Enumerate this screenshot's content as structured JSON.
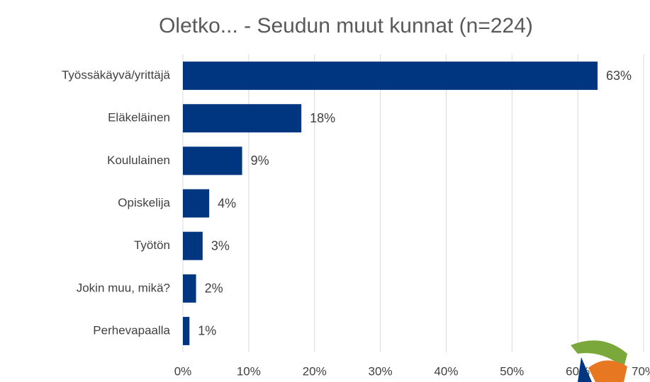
{
  "chart_data": {
    "type": "barh",
    "title": "Oletko... - Seudun muut kunnat (n=224)",
    "categories": [
      "Työssäkäyvä/yrittäjä",
      "Eläkeläinen",
      "Koululainen",
      "Opiskelija",
      "Työtön",
      "Jokin muu, mikä?",
      "Perhevapaalla"
    ],
    "values": [
      63,
      18,
      9,
      4,
      3,
      2,
      1
    ],
    "value_labels": [
      "63%",
      "18%",
      "9%",
      "4%",
      "3%",
      "2%",
      "1%"
    ],
    "color": "#003580",
    "xlim": [
      0,
      70
    ],
    "xticks": [
      {
        "value": 0,
        "label": "0%"
      },
      {
        "value": 10,
        "label": "10%"
      },
      {
        "value": 20,
        "label": "20%"
      },
      {
        "value": 30,
        "label": "30%"
      },
      {
        "value": 40,
        "label": "40%"
      },
      {
        "value": 50,
        "label": "50%"
      },
      {
        "value": 60,
        "label": "60%"
      },
      {
        "value": 70,
        "label": "70%"
      }
    ],
    "grid": true
  }
}
